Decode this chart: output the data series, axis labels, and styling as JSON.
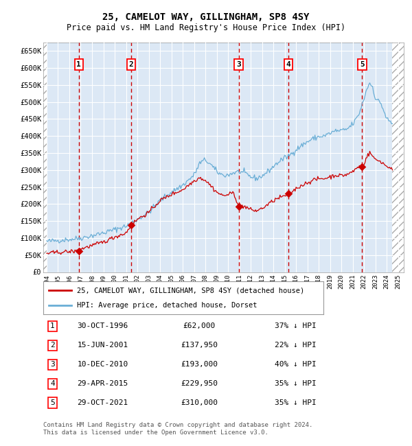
{
  "title": "25, CAMELOT WAY, GILLINGHAM, SP8 4SY",
  "subtitle": "Price paid vs. HM Land Registry's House Price Index (HPI)",
  "ylim": [
    0,
    675000
  ],
  "yticks": [
    0,
    50000,
    100000,
    150000,
    200000,
    250000,
    300000,
    350000,
    400000,
    450000,
    500000,
    550000,
    600000,
    650000
  ],
  "ytick_labels": [
    "£0",
    "£50K",
    "£100K",
    "£150K",
    "£200K",
    "£250K",
    "£300K",
    "£350K",
    "£400K",
    "£450K",
    "£500K",
    "£550K",
    "£600K",
    "£650K"
  ],
  "hpi_color": "#6aaed6",
  "sale_color": "#cc0000",
  "vline_color": "#cc0000",
  "sale_dates_x": [
    1996.83,
    2001.46,
    2010.94,
    2015.33,
    2021.83
  ],
  "sale_prices_y": [
    62000,
    137950,
    193000,
    229950,
    310000
  ],
  "sale_labels": [
    "1",
    "2",
    "3",
    "4",
    "5"
  ],
  "xlim_left": 1993.7,
  "xlim_right": 2025.5,
  "xticks": [
    1994,
    1995,
    1996,
    1997,
    1998,
    1999,
    2000,
    2001,
    2002,
    2003,
    2004,
    2005,
    2006,
    2007,
    2008,
    2009,
    2010,
    2011,
    2012,
    2013,
    2014,
    2015,
    2016,
    2017,
    2018,
    2019,
    2020,
    2021,
    2022,
    2023,
    2024,
    2025
  ],
  "hatch_left_end": 1994.0,
  "hatch_right_start": 2024.5,
  "legend_line1": "25, CAMELOT WAY, GILLINGHAM, SP8 4SY (detached house)",
  "legend_line2": "HPI: Average price, detached house, Dorset",
  "table_rows": [
    [
      "1",
      "30-OCT-1996",
      "£62,000",
      "37% ↓ HPI"
    ],
    [
      "2",
      "15-JUN-2001",
      "£137,950",
      "22% ↓ HPI"
    ],
    [
      "3",
      "10-DEC-2010",
      "£193,000",
      "40% ↓ HPI"
    ],
    [
      "4",
      "29-APR-2015",
      "£229,950",
      "35% ↓ HPI"
    ],
    [
      "5",
      "29-OCT-2021",
      "£310,000",
      "35% ↓ HPI"
    ]
  ],
  "footer": "Contains HM Land Registry data © Crown copyright and database right 2024.\nThis data is licensed under the Open Government Licence v3.0.",
  "bg_color": "#ffffff",
  "plot_bg_color": "#dce8f5",
  "grid_color": "#ffffff"
}
